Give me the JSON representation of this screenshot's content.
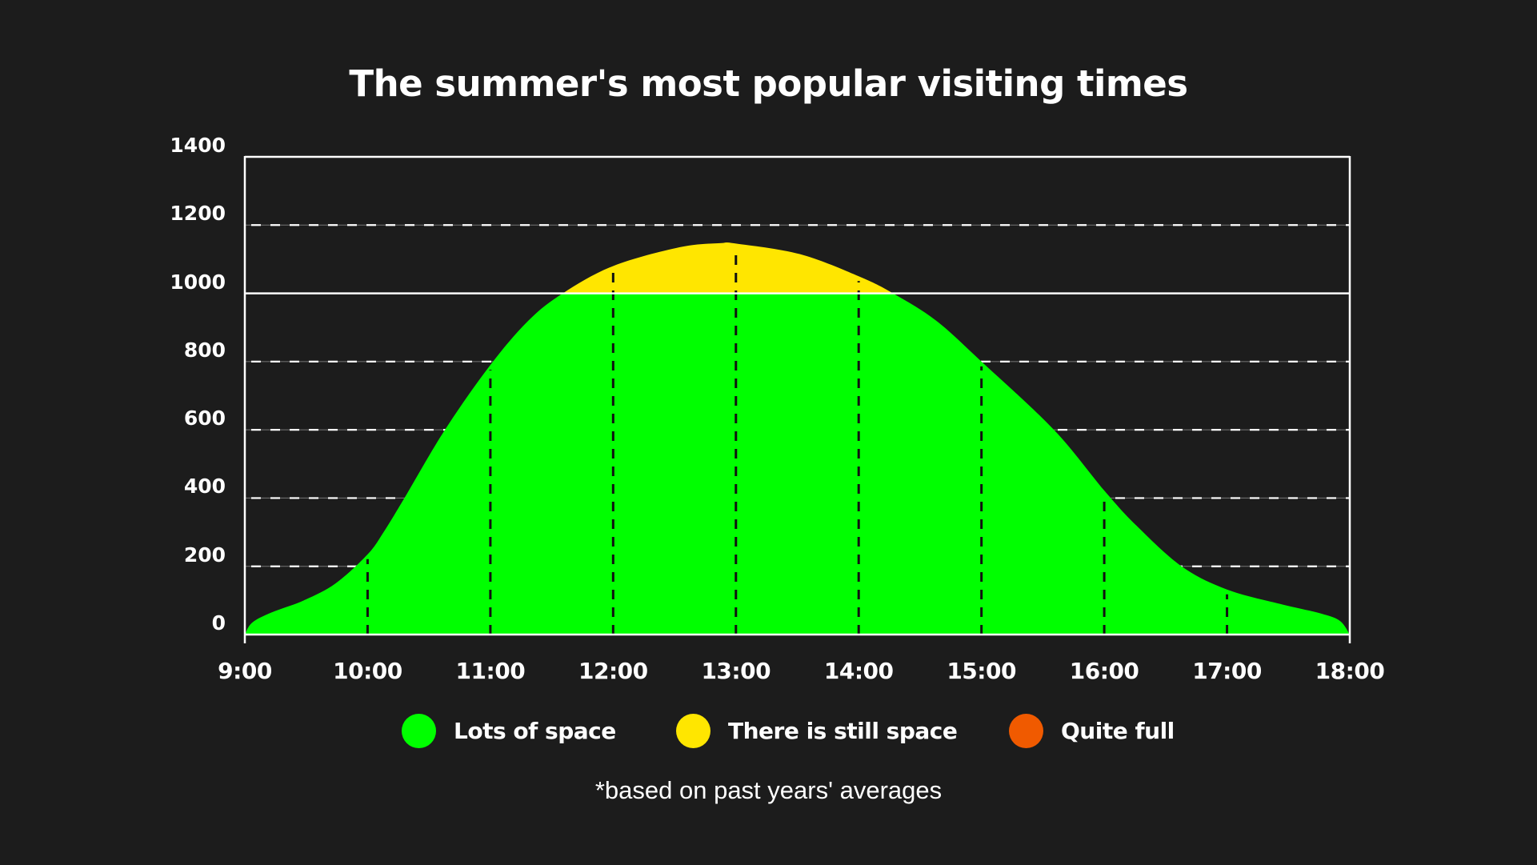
{
  "title": "The summer's most popular visiting times",
  "footnote": "*based on past years' averages",
  "colors": {
    "background": "#1c1c1c",
    "lots_of_space": "#00ff00",
    "still_space": "#ffe600",
    "quite_full": "#f05a00",
    "axis": "#ffffff",
    "grid_dash": "#ffffff",
    "hour_dash": "#111111"
  },
  "y_axis": {
    "ticks": [
      "1400",
      "1200",
      "1000",
      "800",
      "600",
      "400",
      "200",
      "0"
    ]
  },
  "x_axis": {
    "ticks": [
      "9:00",
      "10:00",
      "11:00",
      "12:00",
      "13:00",
      "14:00",
      "15:00",
      "16:00",
      "17:00",
      "18:00"
    ]
  },
  "legend": [
    {
      "label": "Lots of space",
      "color": "#00ff00"
    },
    {
      "label": "There is still space",
      "color": "#ffe600"
    },
    {
      "label": "Quite full",
      "color": "#f05a00"
    }
  ],
  "chart_data": {
    "type": "area",
    "title": "The summer's most popular visiting times",
    "xlabel": "",
    "ylabel": "",
    "ylim": [
      0,
      1400
    ],
    "xlim": [
      "9:00",
      "18:00"
    ],
    "y_ticks": [
      0,
      200,
      400,
      600,
      800,
      1000,
      1200,
      1400
    ],
    "x_ticks": [
      "9:00",
      "10:00",
      "11:00",
      "12:00",
      "13:00",
      "14:00",
      "15:00",
      "16:00",
      "17:00",
      "18:00"
    ],
    "grid": {
      "horizontal": "dashed",
      "vertical": "dashed at each hour (inside area)"
    },
    "threshold_line": 1000,
    "legend_position": "bottom",
    "annotations": [
      "*based on past years' averages"
    ],
    "color_bands": [
      {
        "name": "Lots of space",
        "from": 0,
        "to": 1000,
        "color": "#00ff00"
      },
      {
        "name": "There is still space",
        "from": 1000,
        "to": 1400,
        "color": "#ffe600"
      },
      {
        "name": "Quite full",
        "from": null,
        "to": null,
        "color": "#f05a00"
      }
    ],
    "x_hours": [
      0,
      0.06,
      0.22,
      0.48,
      0.74,
      1.0,
      1.13,
      1.3,
      1.63,
      2.0,
      2.31,
      2.59,
      3.0,
      3.54,
      3.87,
      4.0,
      4.52,
      5.0,
      5.28,
      5.63,
      6.0,
      6.59,
      7.0,
      7.26,
      7.63,
      8.0,
      8.43,
      8.76,
      8.92,
      9.0
    ],
    "values": [
      0,
      35,
      65,
      100,
      150,
      235,
      300,
      400,
      600,
      790,
      920,
      1000,
      1080,
      1135,
      1147,
      1146,
      1115,
      1050,
      1000,
      920,
      800,
      600,
      422,
      320,
      200,
      132,
      90,
      62,
      40,
      0
    ],
    "hourly_values": {
      "9:00": 0,
      "10:00": 235,
      "11:00": 790,
      "12:00": 1080,
      "13:00": 1146,
      "14:00": 1050,
      "15:00": 800,
      "16:00": 422,
      "17:00": 132,
      "18:00": 0
    }
  }
}
